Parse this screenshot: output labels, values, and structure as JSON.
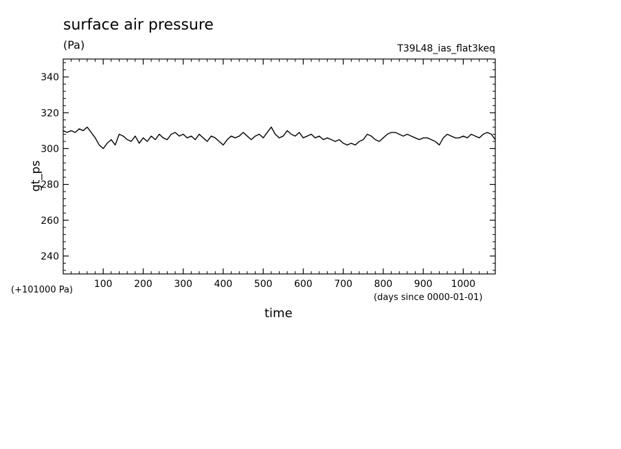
{
  "chart_data": {
    "type": "line",
    "title": "surface air pressure",
    "units": "(Pa)",
    "run_label": "T39L48_ias_flat3keq",
    "xlabel": "time",
    "x_units": "(days since 0000-01-01)",
    "ylabel": "gt_ps",
    "y_offset_label": "(+101000 Pa)",
    "xlim": [
      0,
      1080
    ],
    "ylim": [
      230,
      350
    ],
    "x_ticks": [
      100,
      200,
      300,
      400,
      500,
      600,
      700,
      800,
      900,
      1000
    ],
    "x_tick_labels": [
      "100",
      "200",
      "300",
      "400",
      "500",
      "600",
      "700",
      "800",
      "900",
      "1000"
    ],
    "y_ticks": [
      240,
      260,
      280,
      300,
      320,
      340
    ],
    "y_tick_labels": [
      "240",
      "260",
      "280",
      "300",
      "320",
      "340"
    ],
    "grid": false,
    "series": [
      {
        "x": [
          0,
          10,
          20,
          30,
          40,
          50,
          60,
          70,
          80,
          90,
          100,
          110,
          120,
          130,
          140,
          150,
          160,
          170,
          180,
          190,
          200,
          210,
          220,
          230,
          240,
          250,
          260,
          270,
          280,
          290,
          300,
          310,
          320,
          330,
          340,
          350,
          360,
          370,
          380,
          390,
          400,
          410,
          420,
          430,
          440,
          450,
          460,
          470,
          480,
          490,
          500,
          510,
          520,
          530,
          540,
          550,
          560,
          570,
          580,
          590,
          600,
          610,
          620,
          630,
          640,
          650,
          660,
          670,
          680,
          690,
          700,
          710,
          720,
          730,
          740,
          750,
          760,
          770,
          780,
          790,
          800,
          810,
          820,
          830,
          840,
          850,
          860,
          870,
          880,
          890,
          900,
          910,
          920,
          930,
          940,
          950,
          960,
          970,
          980,
          990,
          1000,
          1010,
          1020,
          1030,
          1040,
          1050,
          1060,
          1070,
          1080
        ],
        "values": [
          310,
          309,
          310,
          309,
          311,
          310,
          312,
          309,
          306,
          302,
          300,
          303,
          305,
          302,
          308,
          307,
          305,
          304,
          307,
          303,
          306,
          304,
          307,
          305,
          308,
          306,
          305,
          308,
          309,
          307,
          308,
          306,
          307,
          305,
          308,
          306,
          304,
          307,
          306,
          304,
          302,
          305,
          307,
          306,
          307,
          309,
          307,
          305,
          307,
          308,
          306,
          309,
          312,
          308,
          306,
          307,
          310,
          308,
          307,
          309,
          306,
          307,
          308,
          306,
          307,
          305,
          306,
          305,
          304,
          305,
          303,
          302,
          303,
          302,
          304,
          305,
          308,
          307,
          305,
          304,
          306,
          308,
          309,
          309,
          308,
          307,
          308,
          307,
          306,
          305,
          306,
          306,
          305,
          304,
          302,
          306,
          308,
          307,
          306,
          306,
          307,
          306,
          308,
          307,
          306,
          308,
          309,
          308,
          305
        ]
      }
    ]
  }
}
